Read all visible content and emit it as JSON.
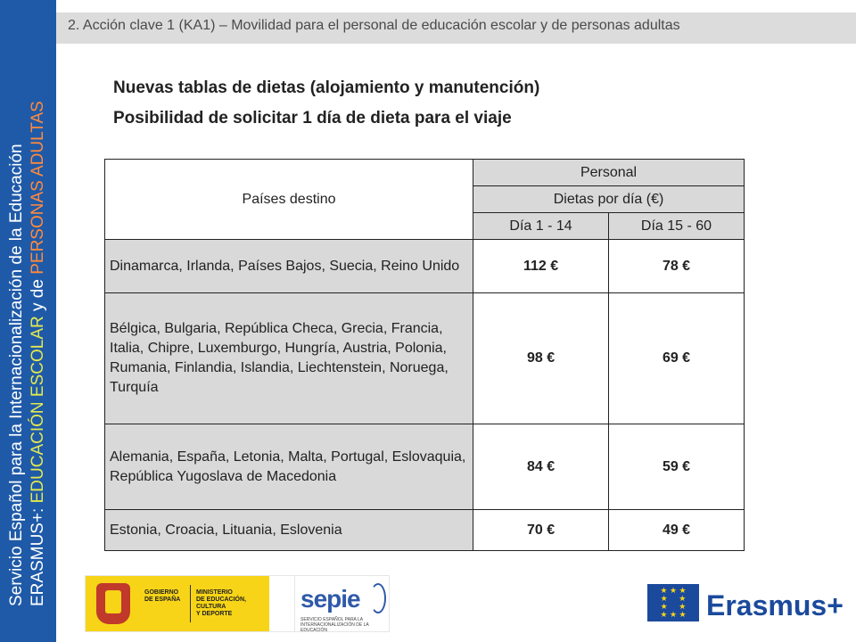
{
  "sidebar": {
    "line1": "Servicio Español para la Internacionalización de la Educación",
    "line2_prefix": "ERASMUS+: ",
    "line2_accent1": "EDUCACIÓN ESCOLAR",
    "line2_mid": " y de ",
    "line2_accent2": "PERSONAS ADULTAS",
    "colors": {
      "background": "#1f5aa8",
      "accent_yellow": "#e2e84f",
      "accent_orange": "#ff8a3d"
    }
  },
  "header": {
    "text": "2. Acción clave 1 (KA1)  – Movilidad para el personal de educación escolar y de personas adultas"
  },
  "titles": {
    "line1": "Nuevas tablas de dietas (alojamiento y manutención)",
    "line2": "Posibilidad de solicitar 1 día de dieta para el viaje"
  },
  "table": {
    "header_countries": "Países destino",
    "header_personal": "Personal",
    "header_dietas": "Dietas por día (€)",
    "header_col1": "Día 1 - 14",
    "header_col2": "Día 15 - 60",
    "rows": [
      {
        "countries": "Dinamarca, Irlanda, Países Bajos, Suecia, Reino Unido",
        "d1": "112 €",
        "d2": "78 €"
      },
      {
        "countries": "Bélgica, Bulgaria, República Checa, Grecia, Francia, Italia, Chipre, Luxemburgo, Hungría, Austria, Polonia, Rumania, Finlandia, Islandia, Liechtenstein, Noruega, Turquía",
        "d1": "98 €",
        "d2": "69 €"
      },
      {
        "countries": "Alemania, España, Letonia, Malta, Portugal, Eslovaquia, República Yugoslava de Macedonia",
        "d1": "84 €",
        "d2": "59 €"
      },
      {
        "countries": "Estonia, Croacia, Lituania, Eslovenia",
        "d1": "70 €",
        "d2": "49 €"
      }
    ]
  },
  "logos": {
    "gobierno_line": "GOBIERNO\nDE ESPAÑA",
    "ministerio_line": "MINISTERIO\nDE EDUCACIÓN, CULTURA\nY DEPORTE",
    "sepie_word": "sepie",
    "sepie_sub": "SERVICIO ESPAÑOL PARA LA\nINTERNACIONALIZACIÓN DE LA EDUCACIÓN",
    "erasmus_word": "Erasmus+",
    "eu_flag_icon": "eu-stars-icon",
    "spain_crest_icon": "spain-crest-icon"
  }
}
